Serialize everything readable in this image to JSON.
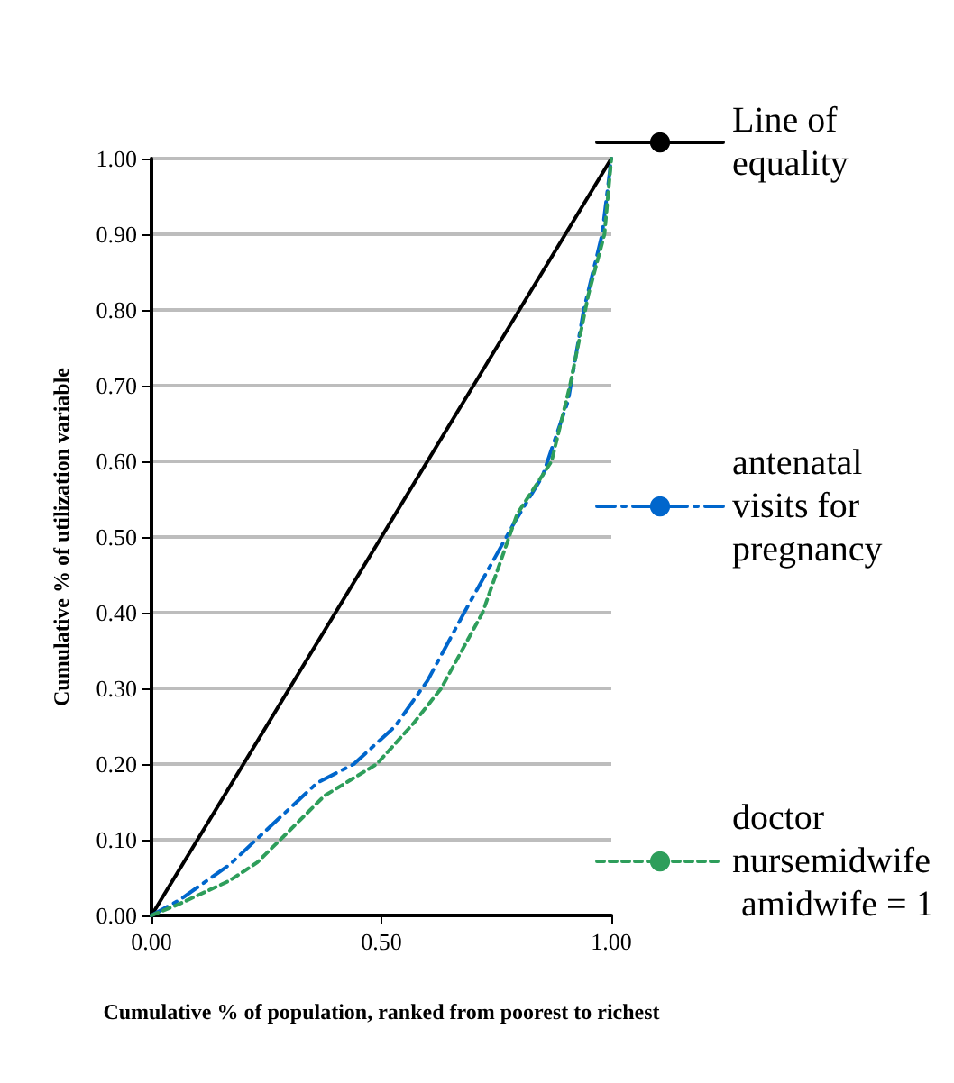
{
  "chart_data": {
    "type": "line",
    "xlabel": "Cumulative % of population, ranked from poorest to richest",
    "ylabel": "Cumulative % of utilization variable",
    "xlim": [
      0,
      1
    ],
    "ylim": [
      0,
      1
    ],
    "xticks": [
      {
        "value": 0,
        "label": "0.00"
      },
      {
        "value": 0.5,
        "label": "0.50"
      },
      {
        "value": 1,
        "label": "1.00"
      }
    ],
    "yticks": [
      {
        "value": 0,
        "label": "0.00"
      },
      {
        "value": 0.1,
        "label": "0.10"
      },
      {
        "value": 0.2,
        "label": "0.20"
      },
      {
        "value": 0.3,
        "label": "0.30"
      },
      {
        "value": 0.4,
        "label": "0.40"
      },
      {
        "value": 0.5,
        "label": "0.50"
      },
      {
        "value": 0.6,
        "label": "0.60"
      },
      {
        "value": 0.7,
        "label": "0.70"
      },
      {
        "value": 0.8,
        "label": "0.80"
      },
      {
        "value": 0.9,
        "label": "0.90"
      },
      {
        "value": 1,
        "label": "1.00"
      }
    ],
    "grid": "y",
    "legend": "right",
    "marker": "none",
    "series": [
      {
        "name": "Line of equality",
        "color": "#000000",
        "line_style": "solid",
        "x": [
          0,
          1
        ],
        "values": [
          0,
          1
        ]
      },
      {
        "name": "antenatal visits for pregnancy",
        "color": "#0066cc",
        "line_style": "dashdot",
        "x": [
          0,
          0.06,
          0.17,
          0.245,
          0.36,
          0.44,
          0.53,
          0.6,
          0.68,
          0.79,
          0.85,
          0.906,
          0.94,
          0.98,
          1
        ],
        "values": [
          0,
          0.02,
          0.067,
          0.11,
          0.175,
          0.2,
          0.25,
          0.31,
          0.4,
          0.52,
          0.58,
          0.68,
          0.8,
          0.9,
          1
        ]
      },
      {
        "name": "doctor nursemidwife amidwife = 1",
        "color": "#2e9e5b",
        "line_style": "dashed",
        "x": [
          0,
          0.06,
          0.17,
          0.23,
          0.28,
          0.376,
          0.49,
          0.57,
          0.63,
          0.72,
          0.795,
          0.87,
          0.91,
          0.95,
          0.985,
          1
        ],
        "values": [
          0,
          0.015,
          0.046,
          0.07,
          0.1,
          0.158,
          0.2,
          0.254,
          0.3,
          0.4,
          0.53,
          0.6,
          0.7,
          0.82,
          0.9,
          1
        ]
      }
    ]
  }
}
